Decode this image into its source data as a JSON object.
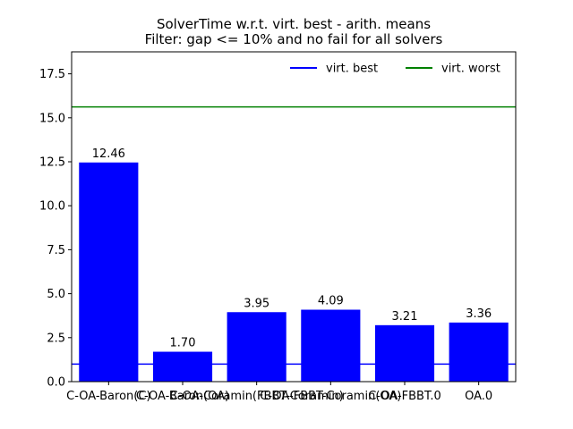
{
  "chart_data": {
    "type": "bar",
    "title": "SolverTime w.r.t. virt. best - arith. means",
    "subtitle": "Filter: gap <= 10% and no fail for all solvers",
    "xlabel": "",
    "ylabel": "",
    "categories": [
      "C-OA-Baron(C)",
      "C-OA-Baron(OA)",
      "C-OA-Coramin(FBBT-Coramin)",
      "C-OA-FBBT-Coramin(OA)",
      "C-OA-FBBT.0",
      "OA.0"
    ],
    "xtick_labels": [
      "C-OA-Baron(C)",
      "C-OA-Baron(OA)",
      "C-OA-Coramin(FBBT-Coramin)",
      "C-OA-FBBT-Coramin(OA)",
      "C-OA-FBBT.0",
      "OA.0"
    ],
    "values": [
      12.46,
      1.7,
      3.95,
      4.09,
      3.21,
      3.36
    ],
    "value_labels": [
      "12.46",
      "1.70",
      "3.95",
      "4.09",
      "3.21",
      "3.36"
    ],
    "ylim": [
      0,
      18.75
    ],
    "yticks": [
      0.0,
      2.5,
      5.0,
      7.5,
      10.0,
      12.5,
      15.0,
      17.5
    ],
    "ytick_labels": [
      "0.0",
      "2.5",
      "5.0",
      "7.5",
      "10.0",
      "12.5",
      "15.0",
      "17.5"
    ],
    "reference_lines": [
      {
        "name": "virt. best",
        "value": 1.0,
        "color": "#0000ff"
      },
      {
        "name": "virt. worst",
        "value": 15.62,
        "color": "#008000"
      }
    ],
    "bar_color": "#0000ff",
    "grid": false,
    "legend_position": "top-right"
  }
}
